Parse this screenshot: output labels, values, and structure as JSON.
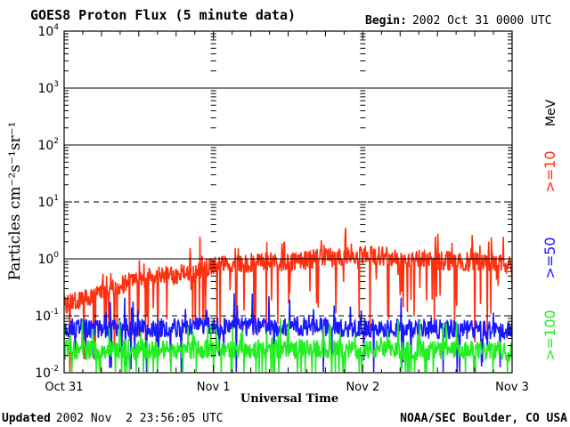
{
  "chart_data": {
    "type": "line",
    "title": "GOES8 Proton Flux (5 minute data)",
    "begin_label": "Begin:",
    "begin_value": "2002 Oct 31 0000 UTC",
    "ylabel": "Particles cm⁻²s⁻¹sr⁻¹",
    "xlabel": "Universal Time",
    "yscale": "log",
    "ylim": [
      0.01,
      10000
    ],
    "y_ticks": [
      {
        "value": 0.01,
        "base": "10",
        "exp": "-2"
      },
      {
        "value": 0.1,
        "base": "10",
        "exp": "-1"
      },
      {
        "value": 1,
        "base": "10",
        "exp": "0"
      },
      {
        "value": 10,
        "base": "10",
        "exp": "1"
      },
      {
        "value": 100,
        "base": "10",
        "exp": "2"
      },
      {
        "value": 1000,
        "base": "10",
        "exp": "3"
      },
      {
        "value": 10000,
        "base": "10",
        "exp": "4"
      }
    ],
    "x_ticks": [
      "Oct 31",
      "Nov 1",
      "Nov 2",
      "Nov 3"
    ],
    "xlim_days": [
      0,
      3
    ],
    "threshold_lines": [
      {
        "value": 10,
        "style": "dashed"
      },
      {
        "value": 0.1,
        "style": "dashed"
      }
    ],
    "solid_gridlines": [
      1,
      100,
      1000
    ],
    "units_label": "MeV",
    "series": [
      {
        "name": ">=10",
        "color": "#ff3010",
        "profile": [
          [
            0,
            0.15
          ],
          [
            0.5,
            0.45
          ],
          [
            0.9,
            0.6
          ],
          [
            1.0,
            0.8
          ],
          [
            1.5,
            0.9
          ],
          [
            2.0,
            1.2
          ],
          [
            2.5,
            0.95
          ],
          [
            3.0,
            0.8
          ]
        ],
        "dip_depth": [
          0.3,
          1.0
        ],
        "dip_prob": 0.1
      },
      {
        "name": ">=50",
        "color": "#1a1aff",
        "profile": [
          [
            0,
            0.06
          ],
          [
            1.5,
            0.065
          ],
          [
            3.0,
            0.055
          ]
        ],
        "dip_depth": [
          0.4,
          0.6
        ],
        "dip_prob": 0.05
      },
      {
        "name": ">=100",
        "color": "#22ee22",
        "profile": [
          [
            0,
            0.025
          ],
          [
            1.5,
            0.026
          ],
          [
            3.0,
            0.024
          ]
        ],
        "dip_depth": [
          0.6,
          0.4
        ],
        "dip_prob": 0.05
      }
    ]
  },
  "footer": {
    "updated_label": "Updated",
    "updated_value": "2002 Nov  2 23:56:05 UTC",
    "credit": "NOAA/SEC Boulder, CO USA"
  },
  "colors": {
    "axis": "#000000",
    "background": "#ffffff"
  }
}
